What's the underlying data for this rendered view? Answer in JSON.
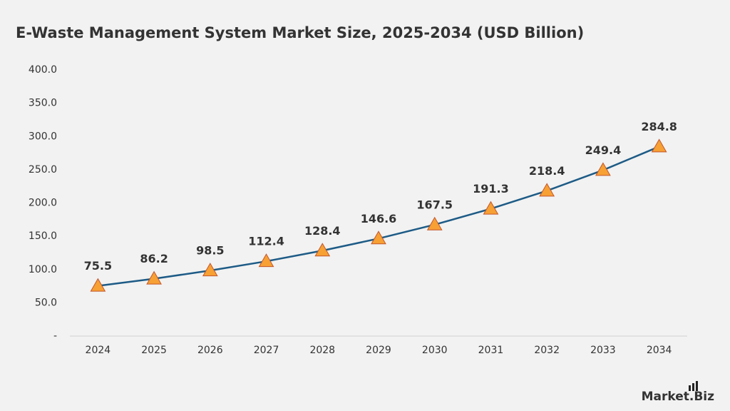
{
  "chart_data": {
    "type": "line",
    "title": "E-Waste Management System Market Size, 2025-2034 (USD Billion)",
    "categories": [
      "2024",
      "2025",
      "2026",
      "2027",
      "2028",
      "2029",
      "2030",
      "2031",
      "2032",
      "2033",
      "2034"
    ],
    "values": [
      75.5,
      86.2,
      98.5,
      112.4,
      128.4,
      146.6,
      167.5,
      191.3,
      218.4,
      249.4,
      284.8
    ],
    "color": "#1d5b86",
    "marker": "triangle",
    "marker_color": "#f7a034",
    "ylim": [
      0,
      400
    ],
    "yticks": [
      {
        "value": 0,
        "label": "-"
      },
      {
        "value": 50,
        "label": "50.0"
      },
      {
        "value": 100,
        "label": "100.0"
      },
      {
        "value": 150,
        "label": "150.0"
      },
      {
        "value": 200,
        "label": "200.0"
      },
      {
        "value": 250,
        "label": "250.0"
      },
      {
        "value": 300,
        "label": "300.0"
      },
      {
        "value": 350,
        "label": "350.0"
      },
      {
        "value": 400,
        "label": "400.0"
      }
    ],
    "grid": false,
    "data_labels": true,
    "brand": "Market.Biz"
  }
}
